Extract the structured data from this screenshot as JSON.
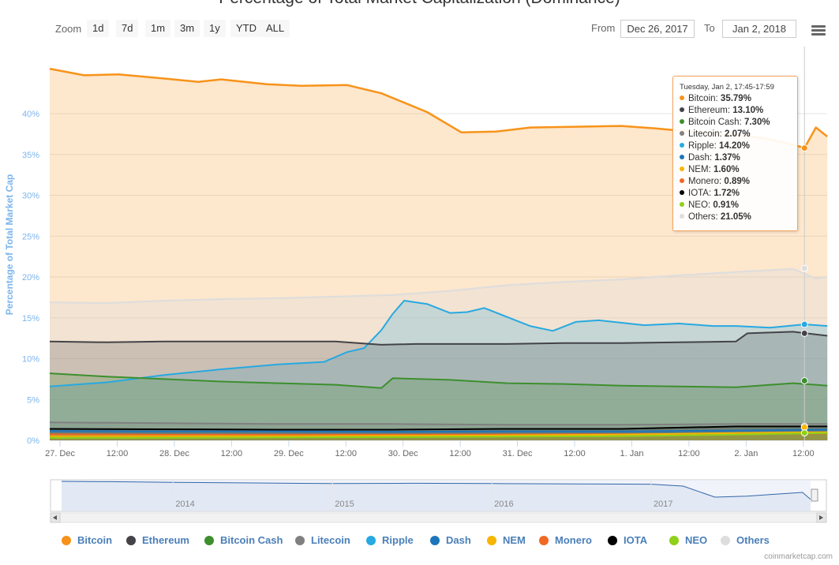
{
  "title": "Percentage of Total Market Capitalization (Dominance)",
  "zoom": {
    "label": "Zoom",
    "buttons": [
      "1d",
      "7d",
      "1m",
      "3m",
      "1y",
      "YTD",
      "ALL"
    ]
  },
  "range": {
    "from_label": "From",
    "from_value": "Dec 26, 2017",
    "to_label": "To",
    "to_value": "Jan 2, 2018"
  },
  "credit": "coinmarketcap.com",
  "colors": {
    "Bitcoin": "#f7931a",
    "Ethereum": "#434348",
    "Bitcoin Cash": "#3d8f2e",
    "Litecoin": "#808080",
    "Ripple": "#27a9e1",
    "Dash": "#1c75bc",
    "NEM": "#f7b500",
    "Monero": "#f26822",
    "IOTA": "#000000",
    "NEO": "#90d018",
    "Others": "#dddddd"
  },
  "tooltip": {
    "header": "Tuesday, Jan 2, 17:45-17:59",
    "rows": [
      {
        "name": "Bitcoin",
        "value": "35.79%"
      },
      {
        "name": "Ethereum",
        "value": "13.10%"
      },
      {
        "name": "Bitcoin Cash",
        "value": "7.30%"
      },
      {
        "name": "Litecoin",
        "value": "2.07%"
      },
      {
        "name": "Ripple",
        "value": "14.20%"
      },
      {
        "name": "Dash",
        "value": "1.37%"
      },
      {
        "name": "NEM",
        "value": "1.60%"
      },
      {
        "name": "Monero",
        "value": "0.89%"
      },
      {
        "name": "IOTA",
        "value": "1.72%"
      },
      {
        "name": "NEO",
        "value": "0.91%"
      },
      {
        "name": "Others",
        "value": "21.05%"
      }
    ]
  },
  "navigator": {
    "year_labels": [
      "2014",
      "2015",
      "2016",
      "2017"
    ]
  },
  "chart_data": {
    "type": "line",
    "ylabel": "Percentage of Total Market Cap",
    "ylim": [
      0,
      50
    ],
    "y_ticks": [
      0,
      5,
      10,
      15,
      20,
      25,
      30,
      35,
      40
    ],
    "y_tick_labels": [
      "0%",
      "5%",
      "10%",
      "15%",
      "20%",
      "25%",
      "30%",
      "35%",
      "40%"
    ],
    "x_tick_labels": [
      "27. Dec",
      "12:00",
      "28. Dec",
      "12:00",
      "29. Dec",
      "12:00",
      "30. Dec",
      "12:00",
      "31. Dec",
      "12:00",
      "1. Jan",
      "12:00",
      "2. Jan",
      "12:00"
    ],
    "x_range_days": [
      0,
      7
    ],
    "x_ticks_days": [
      0.09,
      0.59,
      1.09,
      1.59,
      2.09,
      2.59,
      3.09,
      3.59,
      4.09,
      4.59,
      5.09,
      5.59,
      6.09,
      6.59
    ],
    "grid": true,
    "legend_position": "bottom",
    "series": [
      {
        "name": "Bitcoin",
        "x": [
          0,
          0.3,
          0.6,
          1.0,
          1.3,
          1.5,
          1.9,
          2.2,
          2.6,
          2.9,
          3.3,
          3.6,
          3.9,
          4.2,
          4.6,
          5.0,
          5.3,
          5.6,
          6.0,
          6.25,
          6.5,
          6.6,
          6.7,
          6.8
        ],
        "y": [
          45.5,
          44.7,
          44.8,
          44.3,
          43.9,
          44.2,
          43.6,
          43.4,
          43.5,
          42.5,
          40.2,
          37.7,
          37.8,
          38.3,
          38.4,
          38.5,
          38.2,
          37.8,
          37.4,
          37.0,
          36.2,
          35.8,
          38.3,
          37.2
        ]
      },
      {
        "name": "Others",
        "x": [
          0,
          0.5,
          1.0,
          1.5,
          2.0,
          2.5,
          3.0,
          3.5,
          4.0,
          4.5,
          5.0,
          5.5,
          6.0,
          6.5,
          6.7,
          6.8
        ],
        "y": [
          16.9,
          16.8,
          17.1,
          17.3,
          17.4,
          17.6,
          17.8,
          18.3,
          19.0,
          19.4,
          19.7,
          20.2,
          20.6,
          21.0,
          19.8,
          20.0
        ]
      },
      {
        "name": "Ripple",
        "x": [
          0,
          0.5,
          1.0,
          1.5,
          2.0,
          2.4,
          2.6,
          2.75,
          2.9,
          3.0,
          3.1,
          3.3,
          3.5,
          3.65,
          3.8,
          4.0,
          4.2,
          4.4,
          4.6,
          4.8,
          5.0,
          5.2,
          5.5,
          5.8,
          6.0,
          6.3,
          6.6,
          6.8
        ],
        "y": [
          6.6,
          7.1,
          8.0,
          8.7,
          9.3,
          9.6,
          10.8,
          11.3,
          13.5,
          15.5,
          17.1,
          16.7,
          15.6,
          15.7,
          16.2,
          15.1,
          14.0,
          13.4,
          14.5,
          14.7,
          14.4,
          14.1,
          14.3,
          14.0,
          14.0,
          13.8,
          14.2,
          14.0
        ]
      },
      {
        "name": "Ethereum",
        "x": [
          0,
          0.5,
          1.0,
          1.5,
          2.0,
          2.5,
          2.9,
          3.2,
          3.5,
          4.0,
          4.5,
          5.0,
          5.5,
          6.0,
          6.1,
          6.5,
          6.8
        ],
        "y": [
          12.1,
          12.0,
          12.1,
          12.1,
          12.1,
          12.1,
          11.7,
          11.8,
          11.8,
          11.8,
          11.9,
          11.9,
          12.0,
          12.1,
          13.1,
          13.3,
          12.8
        ]
      },
      {
        "name": "Bitcoin Cash",
        "x": [
          0,
          0.5,
          1.0,
          1.5,
          2.0,
          2.5,
          2.9,
          3.0,
          3.5,
          4.0,
          4.5,
          5.0,
          5.5,
          6.0,
          6.5,
          6.8
        ],
        "y": [
          8.2,
          7.8,
          7.5,
          7.2,
          7.0,
          6.8,
          6.4,
          7.6,
          7.4,
          7.0,
          6.9,
          6.7,
          6.6,
          6.5,
          7.0,
          6.7
        ]
      },
      {
        "name": "Litecoin",
        "x": [
          0,
          1,
          2,
          3,
          4,
          5,
          6,
          6.8
        ],
        "y": [
          2.2,
          2.1,
          2.0,
          2.0,
          1.9,
          1.9,
          2.0,
          2.0
        ]
      },
      {
        "name": "IOTA",
        "x": [
          0,
          1,
          2,
          3,
          4,
          5,
          6,
          6.8
        ],
        "y": [
          1.4,
          1.35,
          1.3,
          1.3,
          1.4,
          1.4,
          1.7,
          1.7
        ]
      },
      {
        "name": "Dash",
        "x": [
          0,
          1,
          2,
          3,
          4,
          5,
          6,
          6.8
        ],
        "y": [
          1.15,
          1.1,
          1.1,
          1.05,
          1.1,
          1.1,
          1.2,
          1.3
        ]
      },
      {
        "name": "Monero",
        "x": [
          0,
          1,
          2,
          3,
          4,
          5,
          6,
          6.8
        ],
        "y": [
          0.75,
          0.7,
          0.7,
          0.7,
          0.72,
          0.75,
          0.8,
          0.85
        ]
      },
      {
        "name": "NEM",
        "x": [
          0,
          1,
          2,
          3,
          4,
          5,
          6,
          6.8
        ],
        "y": [
          0.5,
          0.5,
          0.5,
          0.55,
          0.6,
          0.7,
          0.9,
          1.0
        ]
      },
      {
        "name": "NEO",
        "x": [
          0,
          1,
          2,
          3,
          4,
          5,
          6,
          6.8
        ],
        "y": [
          0.3,
          0.3,
          0.35,
          0.4,
          0.45,
          0.5,
          0.7,
          0.9
        ]
      }
    ],
    "navigator_series": {
      "x_years": [
        2013.3,
        2013.6,
        2014.0,
        2014.5,
        2015.0,
        2015.5,
        2016.0,
        2016.5,
        2017.0,
        2017.2,
        2017.4,
        2017.6,
        2017.8,
        2017.95,
        2018.0
      ],
      "y": [
        95,
        94,
        92,
        90,
        88,
        89,
        88,
        87,
        86,
        80,
        45,
        48,
        55,
        60,
        38
      ]
    }
  }
}
